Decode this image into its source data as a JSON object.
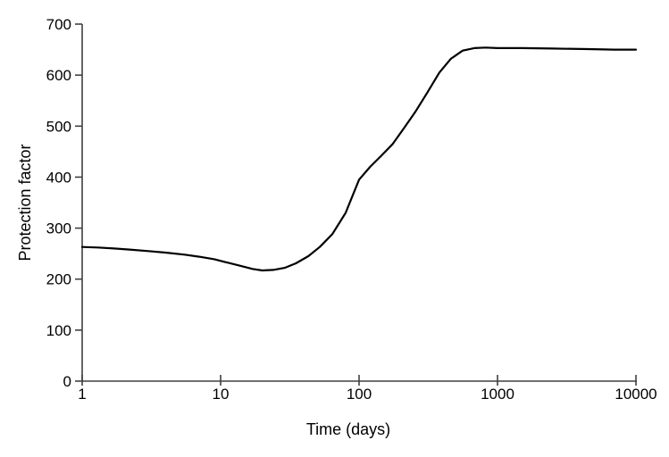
{
  "chart_data": {
    "type": "line",
    "title": "",
    "xlabel": "Time (days)",
    "ylabel": "Protection factor",
    "x_scale": "log",
    "y_scale": "linear",
    "xlim": [
      1,
      10000
    ],
    "ylim": [
      0,
      700
    ],
    "x_ticks": [
      1,
      10,
      100,
      1000,
      10000
    ],
    "x_tick_labels": [
      "1",
      "10",
      "100",
      "1000",
      "10000"
    ],
    "y_ticks": [
      0,
      100,
      200,
      300,
      400,
      500,
      600,
      700
    ],
    "y_tick_labels": [
      "0",
      "100",
      "200",
      "300",
      "400",
      "500",
      "600",
      "700"
    ],
    "grid": false,
    "legend": null,
    "line_color": "#000000",
    "axis_color": "#404040",
    "background_color": "#ffffff",
    "series": [
      {
        "name": "Protection factor",
        "x": [
          1,
          1.3,
          1.7,
          2.2,
          3,
          4,
          5.5,
          7,
          9,
          11,
          14,
          17,
          20,
          24,
          29,
          35,
          43,
          52,
          64,
          80,
          100,
          120,
          145,
          175,
          210,
          255,
          310,
          380,
          460,
          560,
          680,
          820,
          1000,
          1500,
          2500,
          4500,
          7000,
          10000
        ],
        "y": [
          263,
          262,
          260,
          258,
          255,
          252,
          248,
          244,
          239,
          233,
          226,
          220,
          217,
          218,
          222,
          231,
          245,
          263,
          288,
          330,
          395,
          420,
          442,
          465,
          495,
          528,
          565,
          605,
          632,
          648,
          653,
          654,
          653,
          653,
          652,
          651,
          650,
          650
        ]
      }
    ]
  }
}
